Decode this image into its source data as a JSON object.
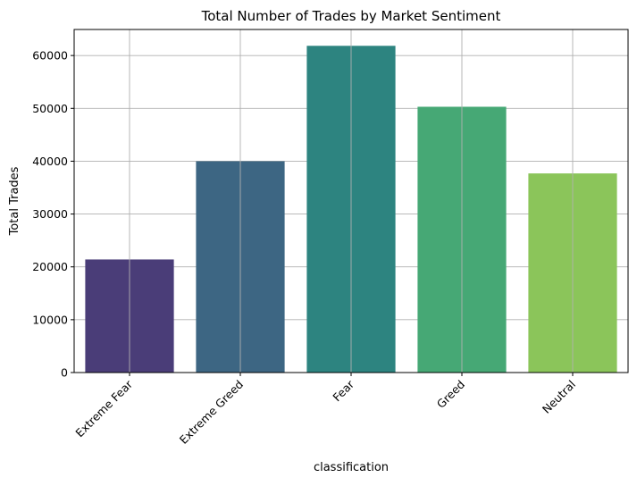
{
  "chart_data": {
    "type": "bar",
    "title": "Total Number of Trades by Market Sentiment",
    "xlabel": "classification",
    "ylabel": "Total Trades",
    "categories": [
      "Extreme Fear",
      "Extreme Greed",
      "Fear",
      "Greed",
      "Neutral"
    ],
    "values": [
      21400,
      39992,
      61837,
      50303,
      37686
    ],
    "colors": [
      "#4a3d78",
      "#3d6683",
      "#2d8480",
      "#46a875",
      "#8bc55a"
    ],
    "yticks": [
      0,
      10000,
      20000,
      30000,
      40000,
      50000,
      60000
    ],
    "ylim": [
      0,
      64929
    ],
    "grid": true,
    "legend": "none"
  }
}
